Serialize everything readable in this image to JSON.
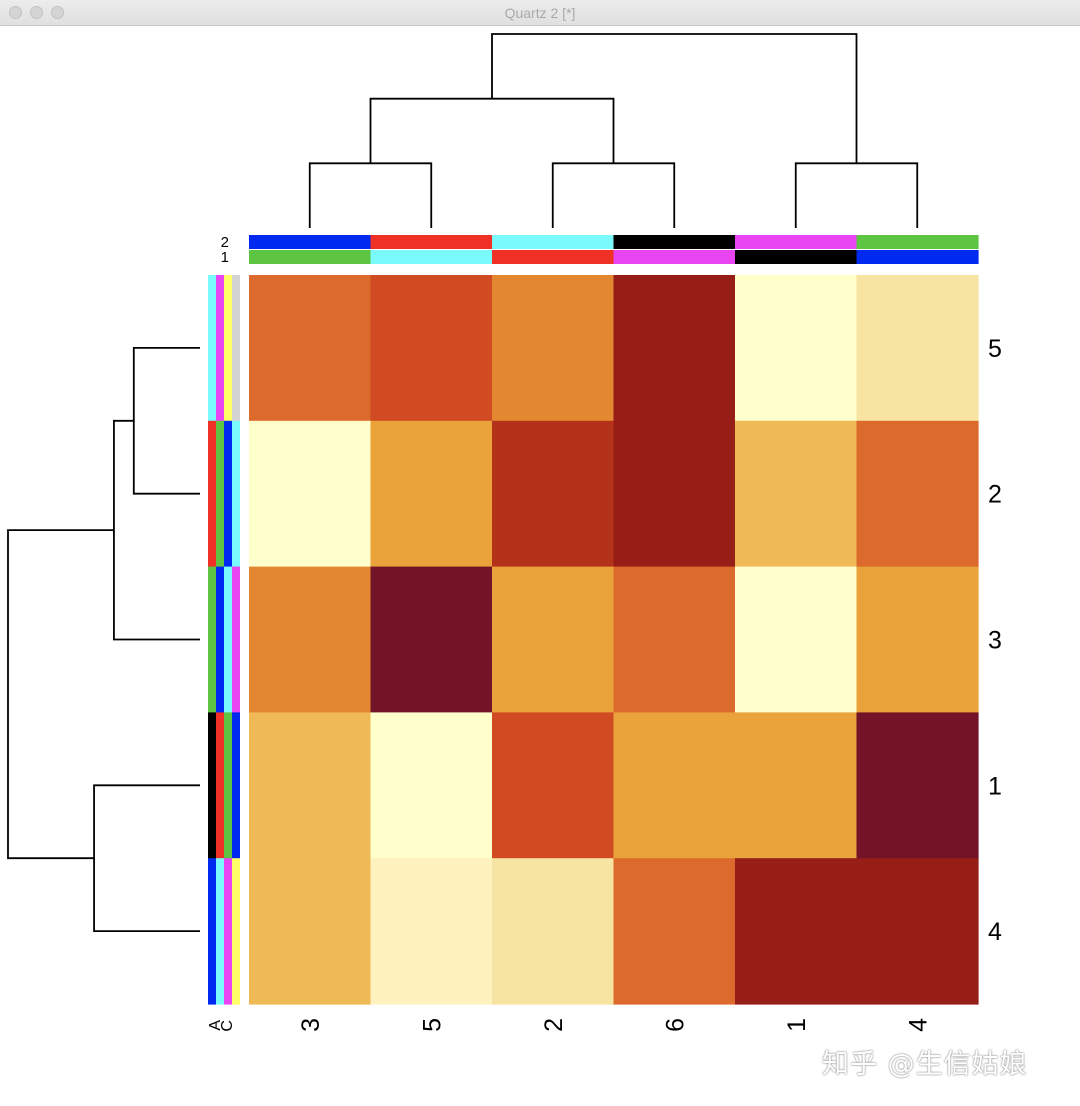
{
  "window": {
    "title": "Quartz 2 [*]"
  },
  "watermark": "知乎 @生信姑娘",
  "chart_data": {
    "type": "heatmap",
    "row_labels": [
      "5",
      "2",
      "3",
      "1",
      "4"
    ],
    "col_labels": [
      "3",
      "5",
      "2",
      "6",
      "1",
      "4"
    ],
    "color_scale": [
      "#FFFFCC",
      "#FEF3BE",
      "#F7E3A2",
      "#EFB956",
      "#EAA23A",
      "#E38731",
      "#DC6A2C",
      "#D04A22",
      "#B5321A",
      "#961E16",
      "#731327"
    ],
    "values": [
      [
        6,
        7,
        5,
        9,
        0,
        2
      ],
      [
        0,
        4,
        8,
        9,
        3,
        6
      ],
      [
        5,
        10,
        4,
        6,
        0,
        4
      ],
      [
        3,
        0,
        7,
        4,
        4,
        10
      ],
      [
        3,
        1,
        2,
        6,
        9,
        9
      ]
    ],
    "col_side_colors": {
      "labels": [
        "2",
        "1"
      ],
      "colors": [
        [
          "#0029F0",
          "#EE3124",
          "#7AFAFA",
          "#000000",
          "#E844F1",
          "#5DC542"
        ],
        [
          "#5DC542",
          "#7AFAFA",
          "#EE3124",
          "#E844F1",
          "#000000",
          "#0029F0"
        ]
      ]
    },
    "row_side_colors": {
      "labels": [
        "A",
        "C"
      ],
      "colors": [
        [
          "#7AFAFA",
          "#E844F1",
          "#FFFF66",
          "#D3D3D3"
        ],
        [
          "#EE3124",
          "#5DC542",
          "#0029F0",
          "#7AFAFA"
        ],
        [
          "#5DC542",
          "#0029F0",
          "#7AFAFA",
          "#E844F1"
        ],
        [
          "#000000",
          "#EE3124",
          "#5DC542",
          "#0029F0"
        ],
        [
          "#0029F0",
          "#7AFAFA",
          "#E844F1",
          "#FFFF66"
        ]
      ]
    },
    "col_dendrogram": [
      [
        0,
        1,
        1
      ],
      [
        2,
        3,
        1
      ],
      [
        4,
        5,
        1
      ],
      [
        -1,
        -2,
        2
      ],
      [
        -4,
        -3,
        3
      ]
    ],
    "row_dendrogram": [
      [
        0,
        1,
        1
      ],
      [
        -1,
        2,
        1.3
      ],
      [
        3,
        4,
        1.6
      ],
      [
        -2,
        -3,
        2.9
      ]
    ]
  }
}
